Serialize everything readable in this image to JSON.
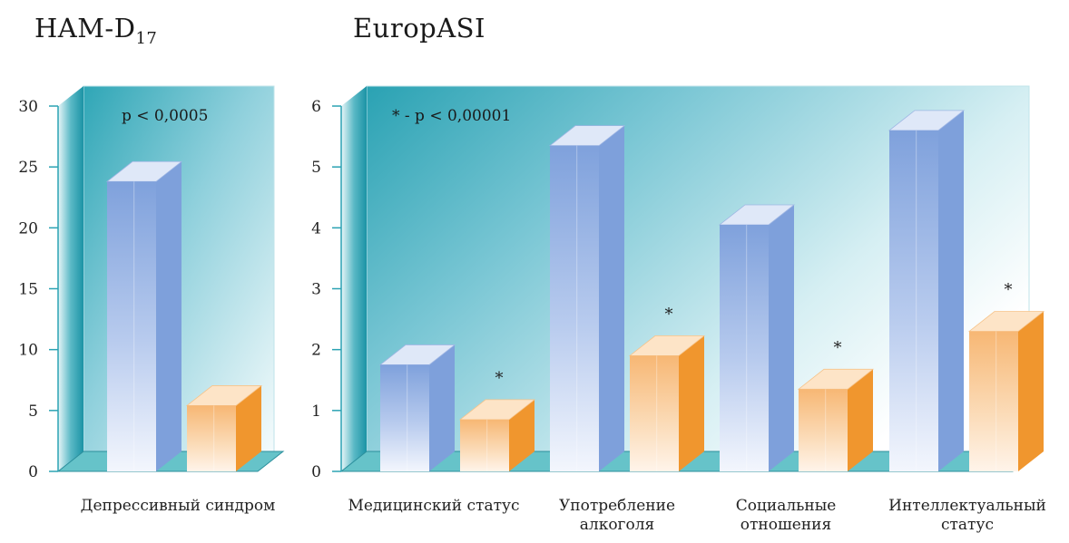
{
  "charts": {
    "ham": {
      "title_main": "HAM-D",
      "title_sub": "17",
      "annotation": "p < 0,0005"
    },
    "asi": {
      "title": "EuropASI",
      "annotation": "* - p < 0,00001"
    }
  },
  "colors": {
    "series1": "#7fa1dc",
    "series2": "#f4a64a",
    "panel_bg": "#8fd0dc",
    "wall_dark": "#2fa3b3",
    "floor": "#66c3c9"
  },
  "chart_data": [
    {
      "type": "bar",
      "title": "HAM-D17",
      "categories": [
        "Депрессивный синдром"
      ],
      "series": [
        {
          "values": [
            23.8
          ]
        },
        {
          "values": [
            5.4
          ]
        }
      ],
      "significance": [
        ""
      ],
      "yticks": [
        "0",
        "5",
        "10",
        "15",
        "20",
        "25",
        "30"
      ],
      "ylim": [
        0,
        30
      ],
      "annotation": "p < 0,0005"
    },
    {
      "type": "bar",
      "title": "EuropASI",
      "categories": [
        "Медицинский статус",
        "Употребление алкоголя",
        "Социальные отношения",
        "Интеллектуальный статус"
      ],
      "category_lines": [
        [
          "Медицинский статус"
        ],
        [
          "Употребление",
          "алкоголя"
        ],
        [
          "Социальные",
          "отношения"
        ],
        [
          "Интеллектуальный",
          "статус"
        ]
      ],
      "series": [
        {
          "values": [
            1.75,
            5.35,
            4.05,
            5.6
          ]
        },
        {
          "values": [
            0.85,
            1.9,
            1.35,
            2.3
          ]
        }
      ],
      "significance": [
        "*",
        "*",
        "*",
        "*"
      ],
      "yticks": [
        "0",
        "1",
        "2",
        "3",
        "4",
        "5",
        "6"
      ],
      "ylim": [
        0,
        6
      ],
      "annotation": "* - p < 0,00001"
    }
  ]
}
